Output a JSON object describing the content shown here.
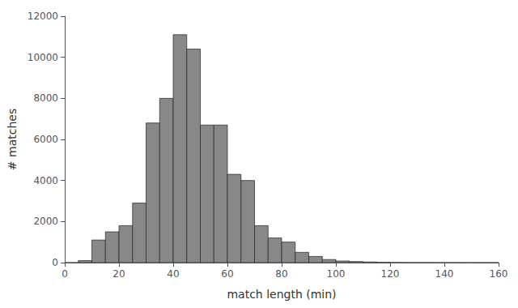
{
  "chart_data": {
    "type": "histogram",
    "xlabel": "match length (min)",
    "ylabel": "# matches",
    "bins": [
      0,
      5,
      10,
      15,
      20,
      25,
      30,
      35,
      40,
      45,
      50,
      55,
      60,
      65,
      70,
      75,
      80,
      85,
      90,
      95,
      100,
      105,
      110,
      115,
      120,
      125,
      130,
      135,
      140,
      145,
      150,
      155,
      160
    ],
    "values": [
      0,
      100,
      1100,
      1500,
      1800,
      2900,
      6800,
      8000,
      11100,
      10400,
      6700,
      6700,
      4300,
      4000,
      1800,
      1200,
      1000,
      500,
      300,
      150,
      80,
      50,
      30,
      15,
      5,
      3,
      2,
      1,
      1,
      0,
      0,
      0
    ],
    "color": "#888888",
    "xlim": [
      0,
      160
    ],
    "ylim": [
      0,
      12000
    ],
    "xticks": [
      0,
      20,
      40,
      60,
      80,
      100,
      120,
      140,
      160
    ],
    "yticks": [
      0,
      2000,
      4000,
      6000,
      8000,
      10000,
      12000
    ],
    "grid": false
  }
}
